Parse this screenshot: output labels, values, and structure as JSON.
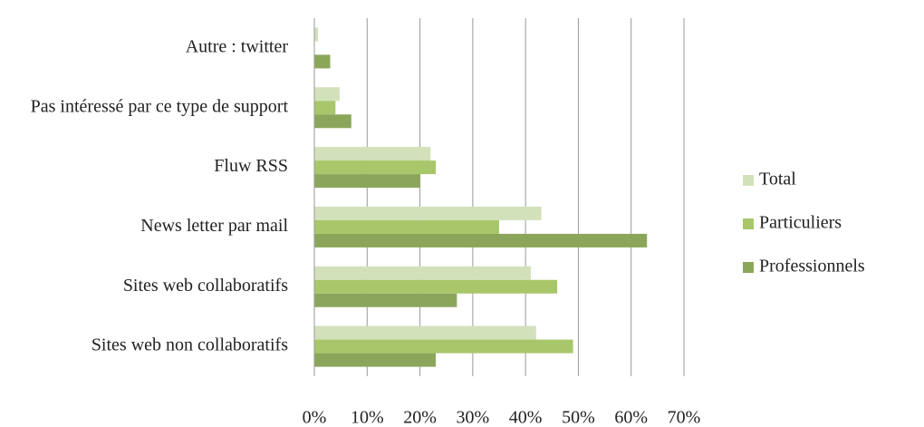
{
  "chart_data": {
    "type": "barh",
    "categories": [
      "Autre : twitter",
      "Pas intéressé par ce type de support",
      "Fluw RSS",
      "News letter par mail",
      "Sites web collaboratifs",
      "Sites web non collaboratifs"
    ],
    "series": [
      {
        "name": "Total",
        "color": "#d3e1bb",
        "values": [
          0.7,
          4.8,
          22,
          43,
          41,
          42
        ]
      },
      {
        "name": "Particuliers",
        "color": "#a8c76b",
        "values": [
          0,
          4,
          23,
          35,
          46,
          49
        ]
      },
      {
        "name": "Professionnels",
        "color": "#8ba65a",
        "values": [
          3,
          7,
          20,
          63,
          27,
          23
        ]
      }
    ],
    "xlim": [
      0,
      70
    ],
    "xticks": [
      {
        "value": 0,
        "label": "0%"
      },
      {
        "value": 10,
        "label": "10%"
      },
      {
        "value": 20,
        "label": "20%"
      },
      {
        "value": 30,
        "label": "30%"
      },
      {
        "value": 40,
        "label": "40%"
      },
      {
        "value": 50,
        "label": "50%"
      },
      {
        "value": 60,
        "label": "60%"
      },
      {
        "value": 70,
        "label": "70%"
      }
    ],
    "grid": true,
    "legend": "right"
  }
}
